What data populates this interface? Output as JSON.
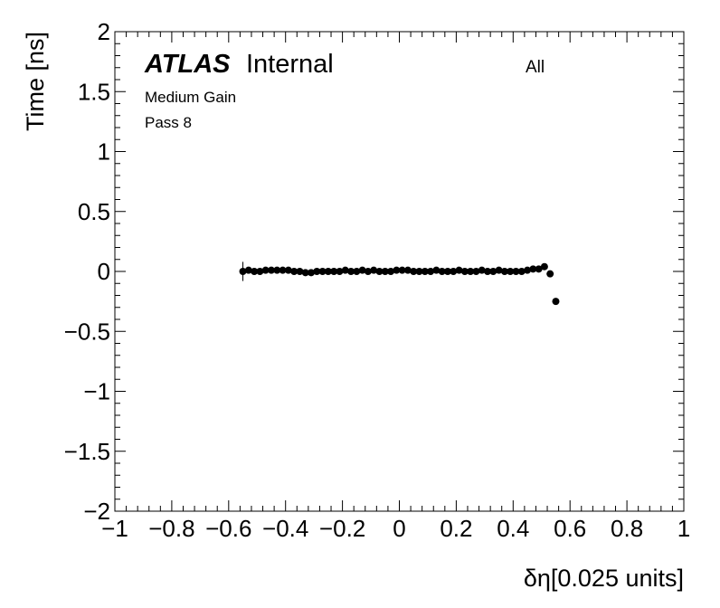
{
  "chart_data": {
    "type": "scatter",
    "title": "ATLAS",
    "subtitle": "Internal",
    "annotations": [
      "All",
      "Medium Gain",
      "Pass 8"
    ],
    "xlabel": "δη[0.025 units]",
    "ylabel": "Time [ns]",
    "color": "#000000",
    "x": [
      -0.55,
      -0.53,
      -0.51,
      -0.49,
      -0.47,
      -0.45,
      -0.43,
      -0.41,
      -0.39,
      -0.37,
      -0.35,
      -0.33,
      -0.31,
      -0.29,
      -0.27,
      -0.25,
      -0.23,
      -0.21,
      -0.19,
      -0.17,
      -0.15,
      -0.13,
      -0.11,
      -0.09,
      -0.07,
      -0.05,
      -0.03,
      -0.01,
      0.01,
      0.03,
      0.05,
      0.07,
      0.09,
      0.11,
      0.13,
      0.15,
      0.17,
      0.19,
      0.21,
      0.23,
      0.25,
      0.27,
      0.29,
      0.31,
      0.33,
      0.35,
      0.37,
      0.39,
      0.41,
      0.43,
      0.45,
      0.47,
      0.49,
      0.51,
      0.53,
      0.55
    ],
    "values": [
      0,
      0.01,
      0,
      0,
      0.01,
      0.01,
      0.01,
      0.01,
      0.01,
      0,
      0,
      -0.01,
      -0.01,
      0,
      0,
      0,
      0,
      0,
      0.01,
      0,
      0,
      0.01,
      0,
      0.01,
      0,
      0,
      0,
      0.01,
      0.01,
      0.01,
      0,
      0,
      0,
      0,
      0.01,
      0,
      0,
      0,
      0.01,
      0,
      0,
      0,
      0.01,
      0,
      0,
      0.01,
      0,
      0,
      0,
      0,
      0.01,
      0.02,
      0.02,
      0.04,
      -0.02,
      -0.25
    ],
    "errors": [
      0.08,
      0,
      0,
      0,
      0,
      0,
      0,
      0,
      0,
      0,
      0,
      0,
      0,
      0,
      0,
      0,
      0,
      0,
      0,
      0,
      0,
      0,
      0,
      0,
      0,
      0,
      0,
      0,
      0,
      0,
      0,
      0,
      0,
      0,
      0,
      0,
      0,
      0,
      0,
      0,
      0,
      0,
      0,
      0,
      0,
      0,
      0,
      0,
      0,
      0,
      0,
      0,
      0,
      0,
      0,
      0
    ],
    "xlim": [
      -1,
      1
    ],
    "xticks": [
      {
        "value": -1,
        "label": "−1"
      },
      {
        "value": -0.8,
        "label": "−0.8"
      },
      {
        "value": -0.6,
        "label": "−0.6"
      },
      {
        "value": -0.4,
        "label": "−0.4"
      },
      {
        "value": -0.2,
        "label": "−0.2"
      },
      0,
      0.2,
      0.4,
      0.6,
      0.8,
      1
    ],
    "ylim": [
      -2,
      2
    ],
    "yticks": [
      {
        "value": -2,
        "label": "−2"
      },
      {
        "value": -1.5,
        "label": "−1.5"
      },
      {
        "value": -1,
        "label": "−1"
      },
      {
        "value": -0.5,
        "label": "−0.5"
      },
      0,
      0.5,
      1,
      1.5,
      2
    ]
  }
}
